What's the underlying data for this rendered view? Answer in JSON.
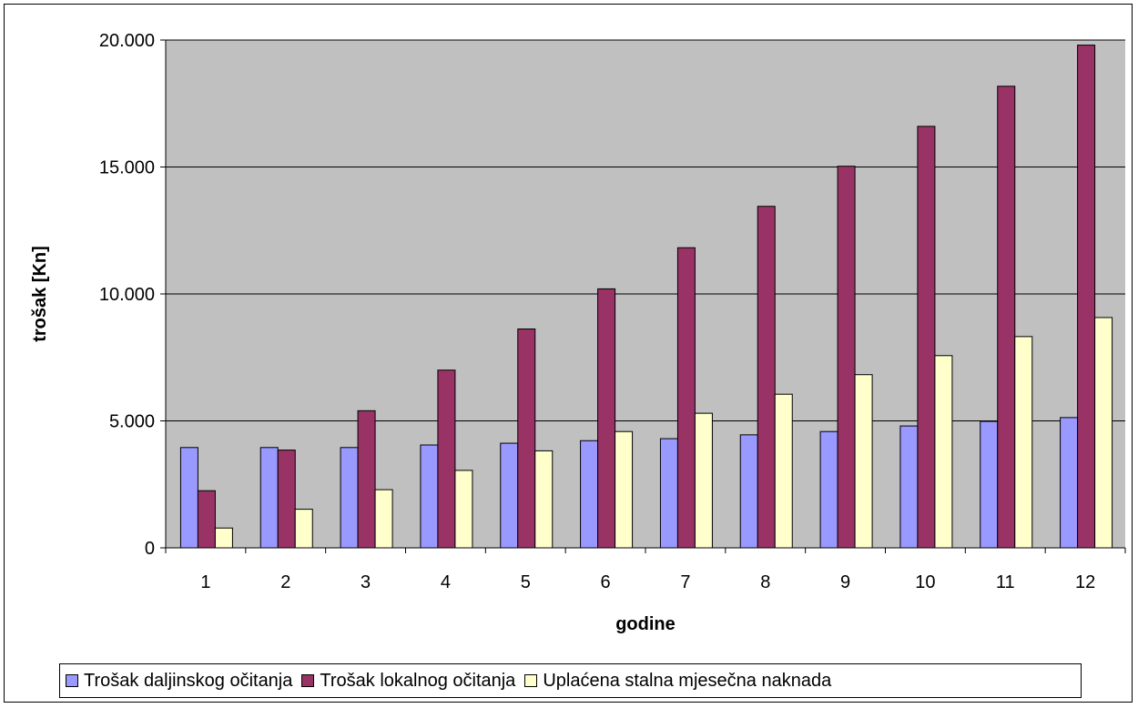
{
  "chart_data": {
    "type": "bar",
    "xlabel": "godine",
    "ylabel": "trošak [Kn]",
    "ylim": [
      0,
      20000
    ],
    "yticks": [
      0,
      5000,
      10000,
      15000,
      20000
    ],
    "ytick_labels": [
      "0",
      "5.000",
      "10.000",
      "15.000",
      "20.000"
    ],
    "categories": [
      "1",
      "2",
      "3",
      "4",
      "5",
      "6",
      "7",
      "8",
      "9",
      "10",
      "11",
      "12"
    ],
    "grid": true,
    "legend_position": "bottom",
    "series": [
      {
        "name": "Trošak daljinskog očitanja",
        "color": "#9999ff",
        "values": [
          3950,
          3950,
          3950,
          4050,
          4120,
          4220,
          4300,
          4450,
          4580,
          4800,
          4980,
          5130
        ]
      },
      {
        "name": "Trošak lokalnog očitanja",
        "color": "#993366",
        "values": [
          2250,
          3850,
          5400,
          7000,
          8620,
          10200,
          11820,
          13450,
          15030,
          16600,
          18180,
          19800
        ]
      },
      {
        "name": "Uplaćena stalna mjesečna naknada",
        "color": "#ffffcc",
        "values": [
          780,
          1520,
          2290,
          3050,
          3820,
          4580,
          5300,
          6050,
          6820,
          7570,
          8320,
          9070
        ]
      }
    ]
  }
}
